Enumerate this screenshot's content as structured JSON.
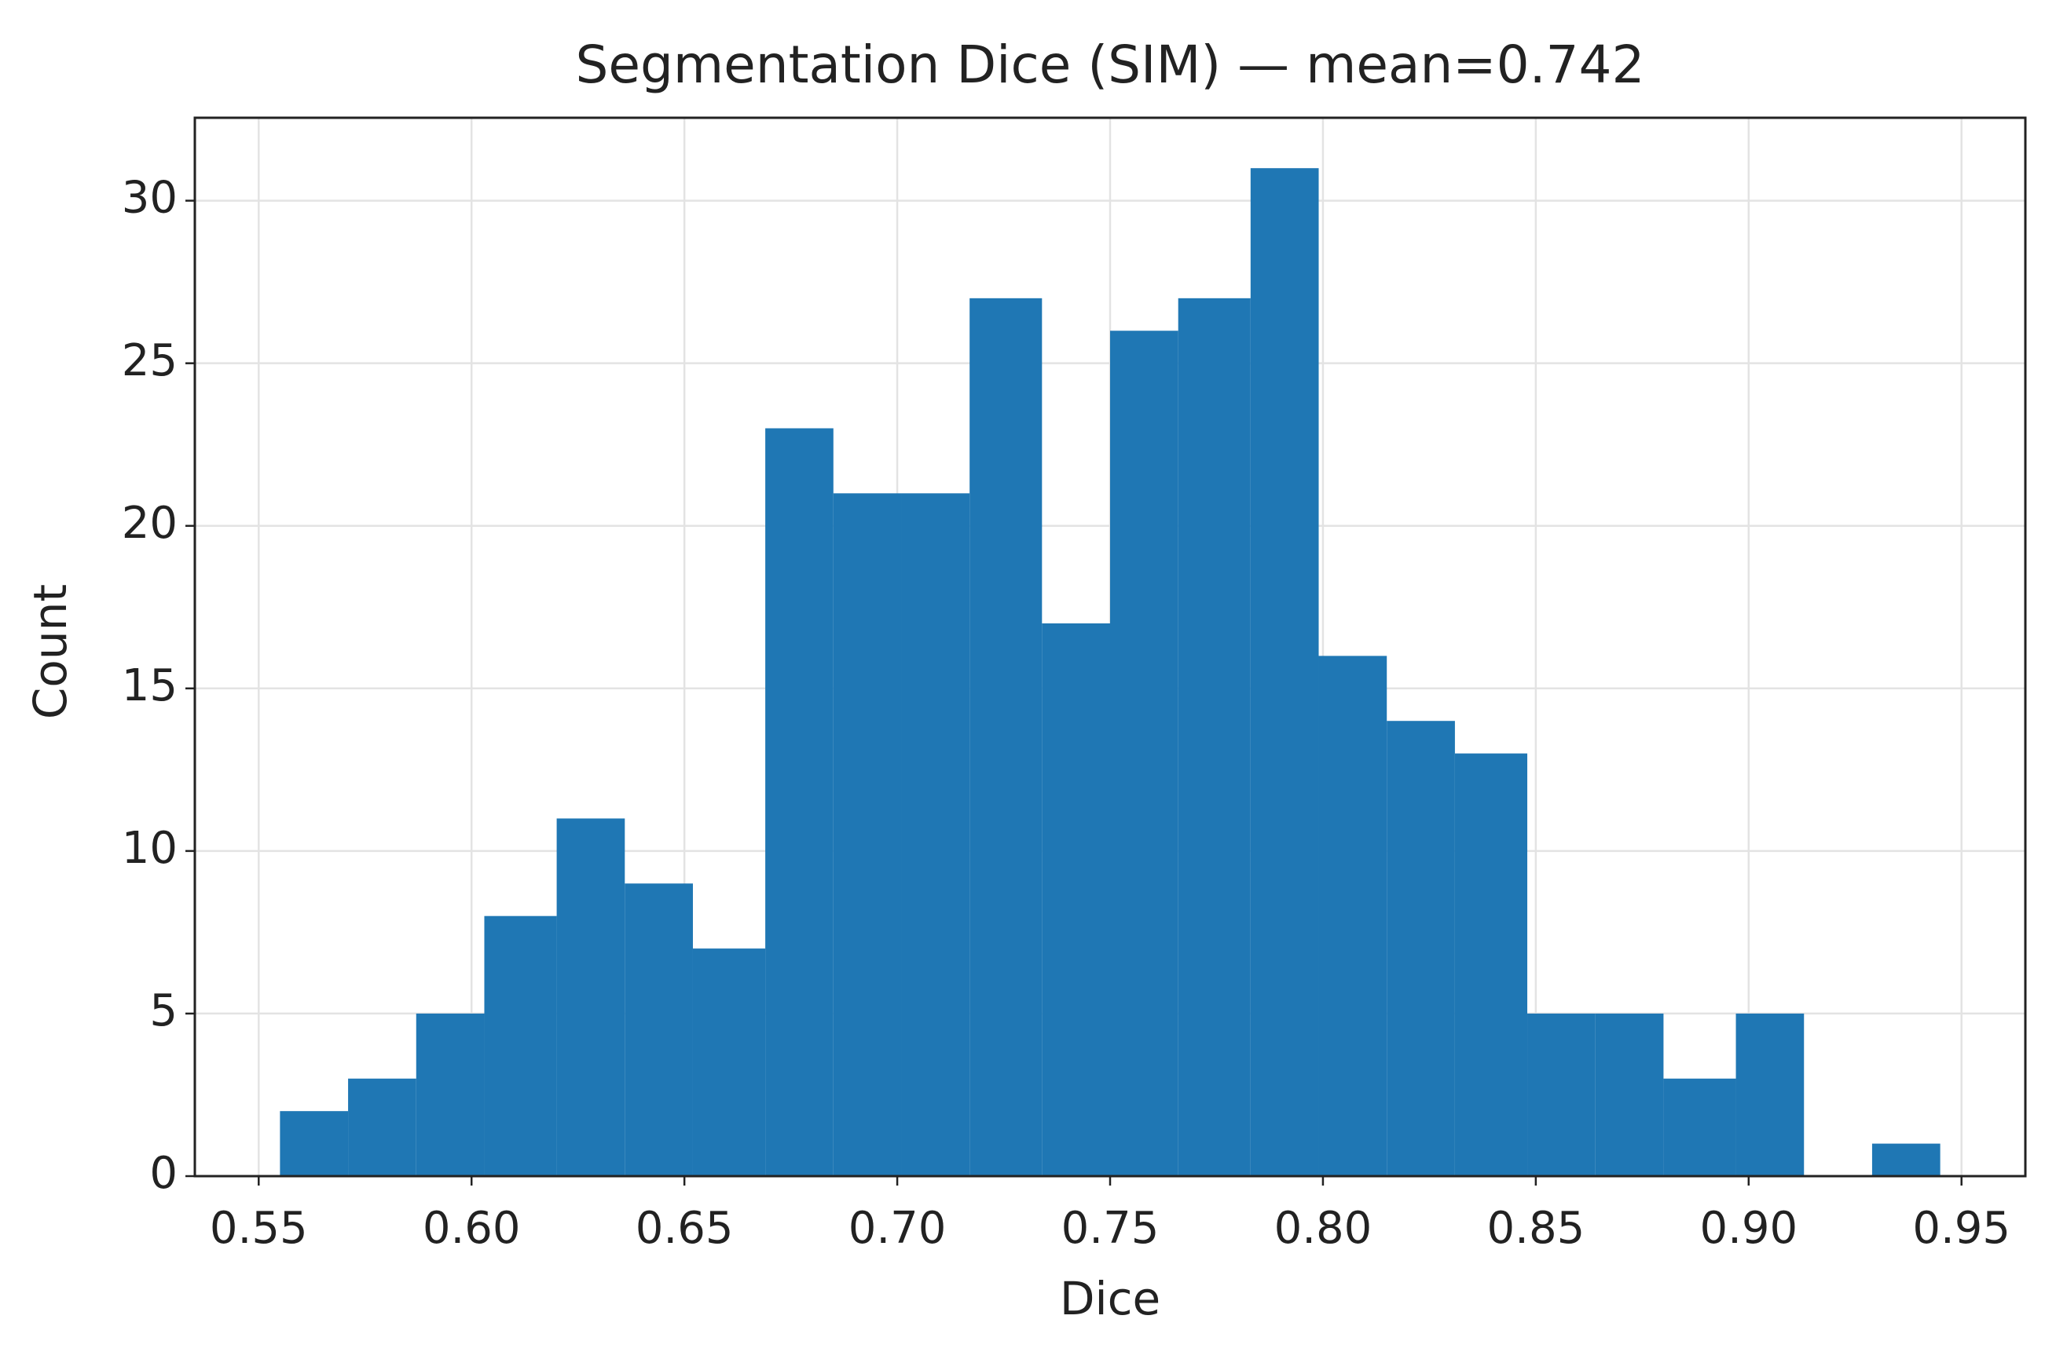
{
  "chart_data": {
    "type": "histogram",
    "title": "Segmentation Dice (SIM) — mean=0.742",
    "x_label": "Dice",
    "y_label": "Count",
    "bins": [
      0.555,
      0.571,
      0.587,
      0.603,
      0.62,
      0.636,
      0.652,
      0.669,
      0.685,
      0.701,
      0.717,
      0.734,
      0.75,
      0.766,
      0.783,
      0.799,
      0.815,
      0.831,
      0.848,
      0.864,
      0.88,
      0.897,
      0.913,
      0.929,
      0.945
    ],
    "counts": [
      2,
      3,
      5,
      8,
      11,
      9,
      7,
      23,
      21,
      21,
      27,
      17,
      26,
      27,
      31,
      16,
      14,
      13,
      5,
      5,
      3,
      5,
      0,
      1
    ],
    "color": "#1f77b4",
    "xlim": [
      0.535,
      0.965
    ],
    "ylim": [
      0,
      32.55
    ],
    "xticks": [
      0.55,
      {
        "value": 0.6,
        "label": "0.60"
      },
      0.65,
      {
        "value": 0.7,
        "label": "0.70"
      },
      0.75,
      {
        "value": 0.8,
        "label": "0.80"
      },
      0.85,
      {
        "value": 0.9,
        "label": "0.90"
      },
      0.95
    ],
    "yticks": [
      0,
      5,
      10,
      15,
      20,
      25,
      30
    ],
    "grid": true
  }
}
